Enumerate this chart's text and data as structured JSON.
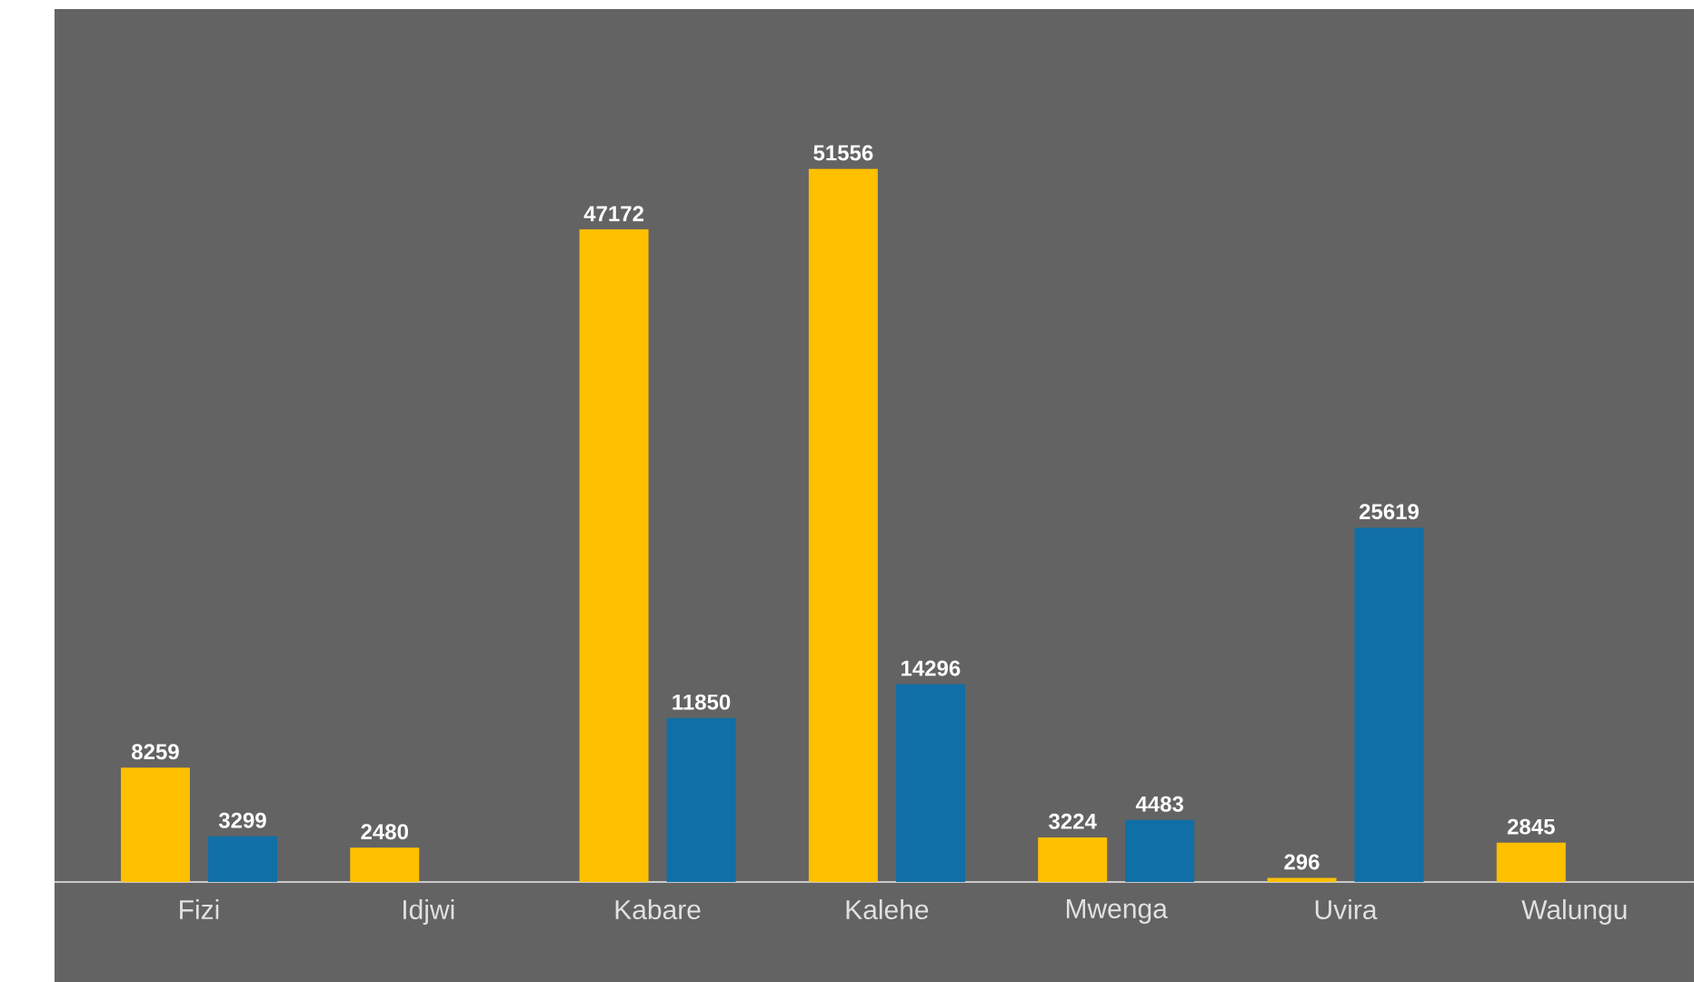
{
  "chart_data": {
    "type": "bar",
    "categories": [
      "Fizi",
      "Idjwi",
      "Kabare",
      "Kalehe",
      "Mwenga",
      "Uvira",
      "Walungu"
    ],
    "series": [
      {
        "color": "#ffc000",
        "values": [
          8259,
          2480,
          47172,
          51556,
          3224,
          296,
          2845
        ]
      },
      {
        "color": "#106fa6",
        "values": [
          3299,
          null,
          11850,
          14296,
          4483,
          25619,
          null
        ]
      }
    ],
    "data_labels": true
  }
}
